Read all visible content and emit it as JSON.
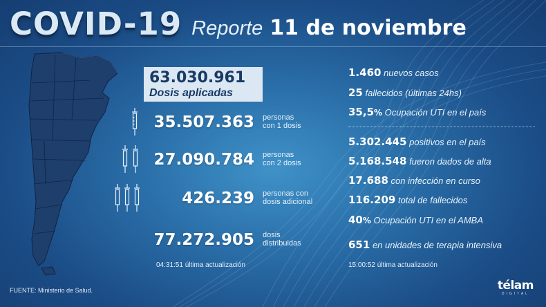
{
  "header": {
    "title": "COVID-19",
    "report_word": "Reporte",
    "date": "11 de noviembre"
  },
  "vaccination": {
    "total": "63.030.961",
    "total_label": "Dosis aplicadas",
    "rows": [
      {
        "value": "35.507.363",
        "label_1": "personas",
        "label_2": "con 1 dosis",
        "icon": "syringe-icon"
      },
      {
        "value": "27.090.784",
        "label_1": "personas",
        "label_2": "con 2 dosis",
        "icon": "two-syringes-icon"
      },
      {
        "value": "426.239",
        "label_1": "personas con",
        "label_2": "dosis adicional",
        "icon": "three-syringes-icon"
      },
      {
        "value": "77.272.905",
        "label_1": "dosis",
        "label_2": "distribuidas"
      }
    ],
    "updated_time": "04:31:51",
    "updated_label": "última actualización"
  },
  "daily": [
    {
      "value": "1.460",
      "label": "nuevos casos"
    },
    {
      "value": "25",
      "label": "fallecidos (últimas 24hs)"
    },
    {
      "value": "35,5",
      "unit": "%",
      "label": "Ocupación UTI en el país"
    }
  ],
  "totals": [
    {
      "value": "5.302.445",
      "label": "positivos en el país"
    },
    {
      "value": "5.168.548",
      "label": "fueron dados de alta"
    },
    {
      "value": "17.688",
      "label": "con infección en curso"
    },
    {
      "value": "116.209",
      "label": "total de fallecidos"
    },
    {
      "value": "40",
      "unit": "%",
      "label": "Ocupación UTI en el AMBA"
    },
    {
      "value": "651",
      "label": "en unidades de terapia intensiva"
    }
  ],
  "cases_updated_time": "15:00:52",
  "cases_updated_label": "última actualización",
  "source": "FUENTE: Ministerio de Salud.",
  "logo": {
    "name": "télam",
    "sub": "DIGITAL"
  },
  "colors": {
    "background": "#1b4c86",
    "accent": "#dbe7f3",
    "dark_text": "#183a64"
  }
}
